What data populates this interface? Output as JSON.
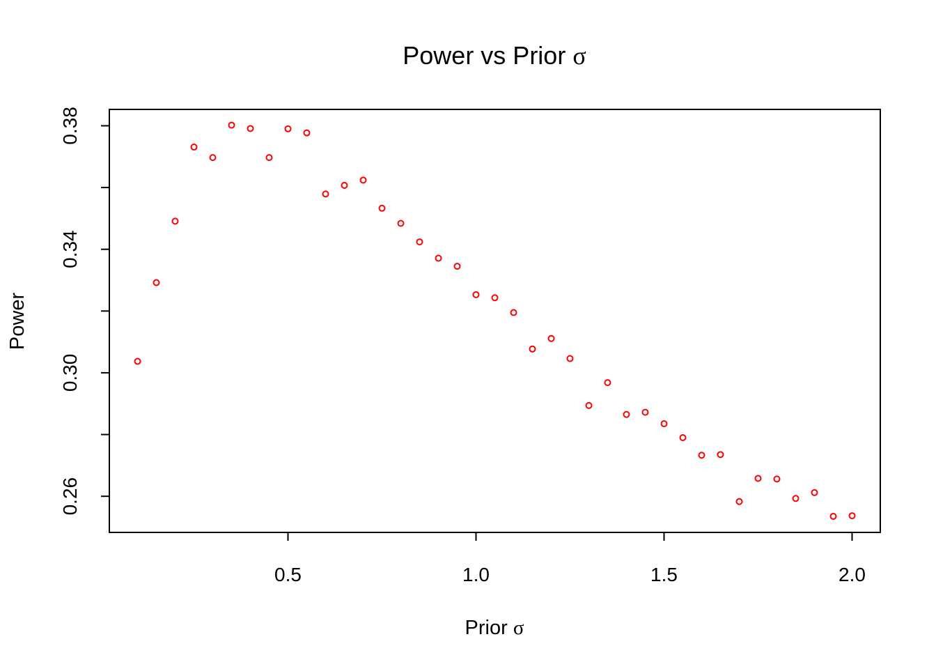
{
  "chart_data": {
    "type": "scatter",
    "title": "Power vs Prior σ",
    "xlabel": "Prior σ",
    "ylabel": "Power",
    "xlim": [
      0.025,
      2.075
    ],
    "ylim": [
      0.2483,
      0.3853
    ],
    "xticks": [
      "0.5",
      "1.0",
      "1.5",
      "2.0"
    ],
    "xtick_values": [
      0.5,
      1.0,
      1.5,
      2.0
    ],
    "yticks": [
      "0.26",
      "0.30",
      "0.34",
      "0.38"
    ],
    "ytick_values": [
      0.26,
      0.3,
      0.34,
      0.38
    ],
    "y_minor_ticks": [
      0.28,
      0.32,
      0.36
    ],
    "grid": false,
    "legend": "none",
    "marker": "open-circle",
    "color": "#ff0000",
    "series": [
      {
        "x": [
          0.1,
          0.15,
          0.2,
          0.25,
          0.3,
          0.35,
          0.4,
          0.45,
          0.5,
          0.55,
          0.6,
          0.65,
          0.7,
          0.75,
          0.8,
          0.85,
          0.9,
          0.95,
          1.0,
          1.05,
          1.1,
          1.15,
          1.2,
          1.25,
          1.3,
          1.35,
          1.4,
          1.45,
          1.5,
          1.55,
          1.6,
          1.65,
          1.7,
          1.75,
          1.8,
          1.85,
          1.9,
          1.95,
          2.0
        ],
        "y": [
          0.3037,
          0.3292,
          0.3491,
          0.3731,
          0.3697,
          0.3802,
          0.3791,
          0.3697,
          0.379,
          0.3777,
          0.3579,
          0.3607,
          0.3624,
          0.3533,
          0.3484,
          0.3424,
          0.3371,
          0.3345,
          0.3253,
          0.3243,
          0.3195,
          0.3077,
          0.3111,
          0.3046,
          0.2894,
          0.2968,
          0.2865,
          0.2872,
          0.2835,
          0.279,
          0.2733,
          0.2735,
          0.2583,
          0.2658,
          0.2656,
          0.2593,
          0.2612,
          0.2535,
          0.2537
        ]
      }
    ]
  }
}
